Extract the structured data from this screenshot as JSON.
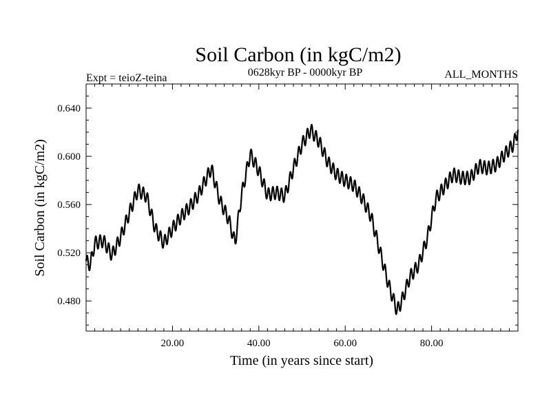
{
  "chart_data": {
    "type": "line",
    "title": "Soil Carbon (in kgC/m2)",
    "subtitle_left": "Expt = teioZ-teina",
    "subtitle_center": "0628kyr BP - 0000kyr BP",
    "subtitle_right": "ALL_MONTHS",
    "xlabel": "Time (in years since start)",
    "ylabel": "Soil Carbon (in kgC/m2)",
    "xlim": [
      0,
      100
    ],
    "ylim": [
      0.455,
      0.66
    ],
    "xticks": [
      20,
      40,
      60,
      80
    ],
    "xtick_labels": [
      "20.00",
      "40.00",
      "60.00",
      "80.00"
    ],
    "yticks": [
      0.48,
      0.52,
      0.56,
      0.6,
      0.64
    ],
    "ytick_labels": [
      "0.480",
      "0.520",
      "0.560",
      "0.600",
      "0.640"
    ],
    "grid": false,
    "series": [
      {
        "name": "Soil Carbon",
        "color": "#000000",
        "trend": {
          "x": [
            0,
            1,
            2,
            4,
            6,
            8,
            10,
            12,
            14,
            16,
            18,
            20,
            22,
            24,
            26,
            28,
            29,
            31,
            33,
            34.5,
            36,
            38,
            40,
            42,
            44,
            46,
            48,
            50,
            52,
            54,
            56,
            58,
            60,
            62,
            64,
            66,
            68,
            70,
            72,
            73,
            75,
            77,
            79,
            81,
            83,
            85,
            87,
            89,
            91,
            93,
            95,
            97,
            99,
            100
          ],
          "y": [
            0.513,
            0.51,
            0.528,
            0.53,
            0.518,
            0.533,
            0.553,
            0.572,
            0.567,
            0.54,
            0.528,
            0.54,
            0.55,
            0.558,
            0.568,
            0.583,
            0.59,
            0.563,
            0.548,
            0.528,
            0.568,
            0.602,
            0.588,
            0.568,
            0.57,
            0.567,
            0.59,
            0.61,
            0.622,
            0.612,
            0.595,
            0.585,
            0.58,
            0.576,
            0.565,
            0.55,
            0.522,
            0.494,
            0.472,
            0.479,
            0.5,
            0.51,
            0.532,
            0.565,
            0.575,
            0.585,
            0.582,
            0.582,
            0.592,
            0.59,
            0.593,
            0.602,
            0.61,
            0.622
          ]
        },
        "oscillation": {
          "period_years": 1,
          "amplitude": 0.0055
        }
      }
    ]
  }
}
